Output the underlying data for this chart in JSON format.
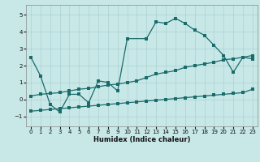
{
  "xlabel": "Humidex (Indice chaleur)",
  "xlim": [
    -0.5,
    23.5
  ],
  "ylim": [
    -1.6,
    5.6
  ],
  "yticks": [
    -1,
    0,
    1,
    2,
    3,
    4,
    5
  ],
  "xticks": [
    0,
    1,
    2,
    3,
    4,
    5,
    6,
    7,
    8,
    9,
    10,
    11,
    12,
    13,
    14,
    15,
    16,
    17,
    18,
    19,
    20,
    21,
    22,
    23
  ],
  "bg_color": "#c8e8e8",
  "line_color": "#1a6b6b",
  "grid_color": "#aad0d0",
  "line1_x": [
    0,
    1,
    2,
    3,
    4,
    5,
    6,
    7,
    8,
    9,
    10,
    12,
    13,
    14,
    15,
    16,
    17,
    18,
    19,
    20,
    21,
    22,
    23
  ],
  "line1_y": [
    2.5,
    1.4,
    -0.3,
    -0.75,
    0.3,
    0.3,
    -0.2,
    1.1,
    1.0,
    0.5,
    3.6,
    3.6,
    4.6,
    4.5,
    4.8,
    4.5,
    4.1,
    3.8,
    3.2,
    2.6,
    1.6,
    2.5,
    2.4
  ],
  "line2_x": [
    0,
    1,
    2,
    3,
    4,
    5,
    6,
    7,
    8,
    9,
    10,
    11,
    12,
    13,
    14,
    15,
    16,
    17,
    18,
    19,
    20,
    21,
    22,
    23
  ],
  "line2_y": [
    0.2,
    0.3,
    0.35,
    0.4,
    0.5,
    0.6,
    0.65,
    0.75,
    0.85,
    0.9,
    1.0,
    1.1,
    1.3,
    1.5,
    1.6,
    1.7,
    1.9,
    2.0,
    2.1,
    2.2,
    2.35,
    2.4,
    2.5,
    2.6
  ],
  "line3_x": [
    0,
    1,
    2,
    3,
    4,
    5,
    6,
    7,
    8,
    9,
    10,
    11,
    12,
    13,
    14,
    15,
    16,
    17,
    18,
    19,
    20,
    21,
    22,
    23
  ],
  "line3_y": [
    -0.7,
    -0.65,
    -0.6,
    -0.55,
    -0.5,
    -0.45,
    -0.4,
    -0.35,
    -0.3,
    -0.25,
    -0.2,
    -0.15,
    -0.1,
    -0.05,
    0.0,
    0.05,
    0.1,
    0.15,
    0.2,
    0.25,
    0.3,
    0.35,
    0.4,
    0.6
  ]
}
